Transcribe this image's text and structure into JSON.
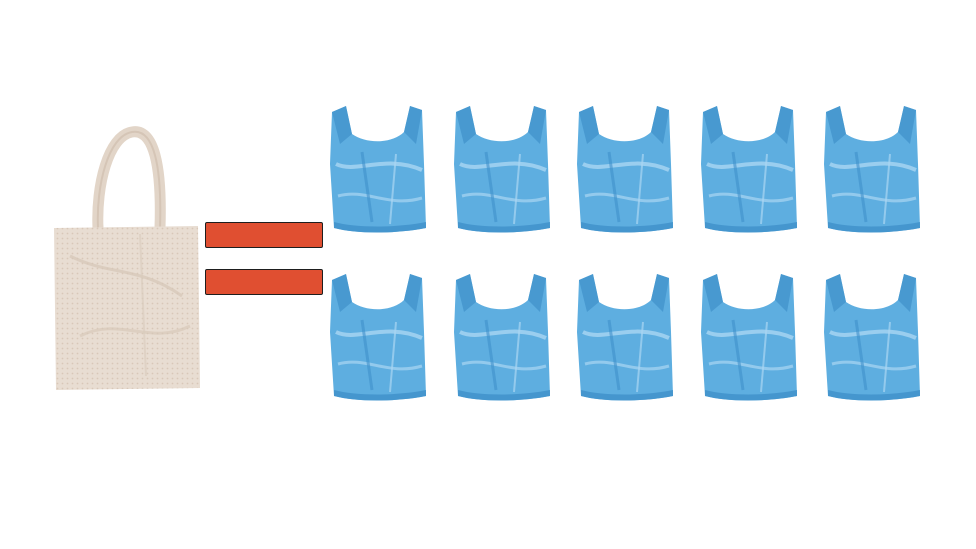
{
  "diagram": {
    "tote_bag": {
      "icon": "cloth-tote-bag-icon",
      "fill": "#e8ddd2",
      "shade": "#d6c6b6",
      "count": 1
    },
    "equals_sign": {
      "icon": "equals-sign-icon",
      "color": "#e04f31",
      "border": "#1e1e1e"
    },
    "plastic_bags": {
      "icon": "plastic-bag-icon",
      "fill": "#5eaee0",
      "shade": "#3f90c9",
      "highlight": "#a9d6f2",
      "count": 10,
      "rows": 2,
      "columns": 5
    }
  }
}
